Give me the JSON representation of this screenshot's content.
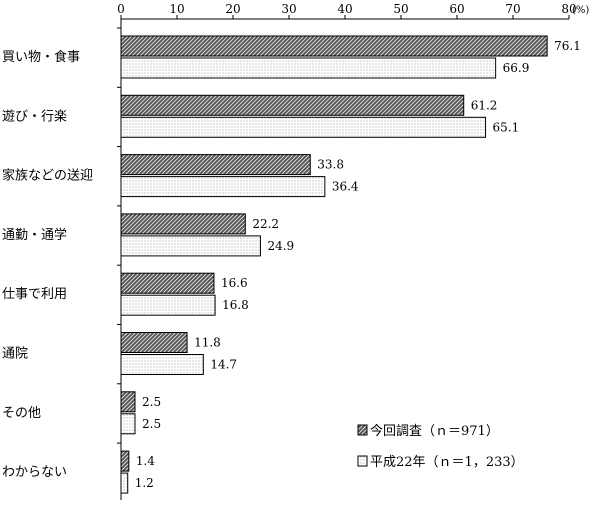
{
  "chart_data": {
    "type": "bar",
    "orientation": "horizontal",
    "unit": "(%)",
    "xlim": [
      0,
      80
    ],
    "ticks": [
      0,
      10,
      20,
      30,
      40,
      50,
      60,
      70,
      80
    ],
    "tick_labels": [
      "0",
      "10",
      "20",
      "30",
      "40",
      "50",
      "60",
      "70",
      "80"
    ],
    "categories": [
      "買い物・食事",
      "遊び・行楽",
      "家族などの送迎",
      "通勤・通学",
      "仕事で利用",
      "通院",
      "その他",
      "わからない"
    ],
    "series": [
      {
        "name": "今回調査（ｎ＝971）",
        "pattern": "hatched",
        "values": [
          76.1,
          61.2,
          33.8,
          22.2,
          16.6,
          11.8,
          2.5,
          1.4
        ],
        "value_labels": [
          "76.1",
          "61.2",
          "33.8",
          "22.2",
          "16.6",
          "11.8",
          "2.5",
          "1.4"
        ]
      },
      {
        "name": "平成22年（ｎ＝1，233）",
        "pattern": "dotted",
        "values": [
          66.9,
          65.1,
          36.4,
          24.9,
          16.8,
          14.7,
          2.5,
          1.2
        ],
        "value_labels": [
          "66.9",
          "65.1",
          "36.4",
          "24.9",
          "16.8",
          "14.7",
          "2.5",
          "1.2"
        ]
      }
    ],
    "legend_position": "bottom-right",
    "grid": false
  }
}
